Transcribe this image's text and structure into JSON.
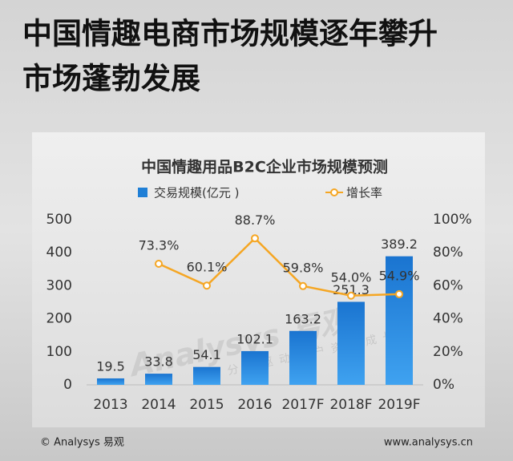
{
  "headline": {
    "line1": "中国情趣电商市场规模逐年攀升",
    "line2": "市场蓬勃发展"
  },
  "chart_data": {
    "type": "bar_line",
    "title": "中国情趣用品B2C企业市场规模预测",
    "categories": [
      "2013",
      "2014",
      "2015",
      "2016",
      "2017F",
      "2018F",
      "2019F"
    ],
    "series": [
      {
        "name": "交易规模(亿元 )",
        "type": "bar",
        "color": "#1f7fd6",
        "values": [
          19.5,
          33.8,
          54.1,
          102.1,
          163.2,
          251.3,
          389.2
        ]
      },
      {
        "name": "增长率",
        "type": "line",
        "axis": "y2",
        "color": "#f5a623",
        "values": [
          null,
          73.3,
          60.1,
          88.7,
          59.8,
          54.0,
          54.9
        ],
        "value_labels": [
          null,
          "73.3%",
          "60.1%",
          "88.7%",
          "59.8%",
          "54.0%",
          "54.9%"
        ]
      }
    ],
    "ylim": [
      0,
      500
    ],
    "yticks": [
      0,
      100,
      200,
      300,
      400,
      500
    ],
    "y2lim": [
      0,
      100
    ],
    "y2ticks": [
      {
        "value": 0,
        "label": "0%"
      },
      {
        "value": 20,
        "label": "20%"
      },
      {
        "value": 40,
        "label": "40%"
      },
      {
        "value": 60,
        "label": "60%"
      },
      {
        "value": 80,
        "label": "80%"
      },
      {
        "value": 100,
        "label": "100%"
      }
    ],
    "legend": "top"
  },
  "watermark": {
    "brand": "Analysys 易观",
    "slogan": "实时分析驱动用户资产成长"
  },
  "footer": {
    "left": "© Analysys 易观",
    "right": "www.analysys.cn"
  }
}
